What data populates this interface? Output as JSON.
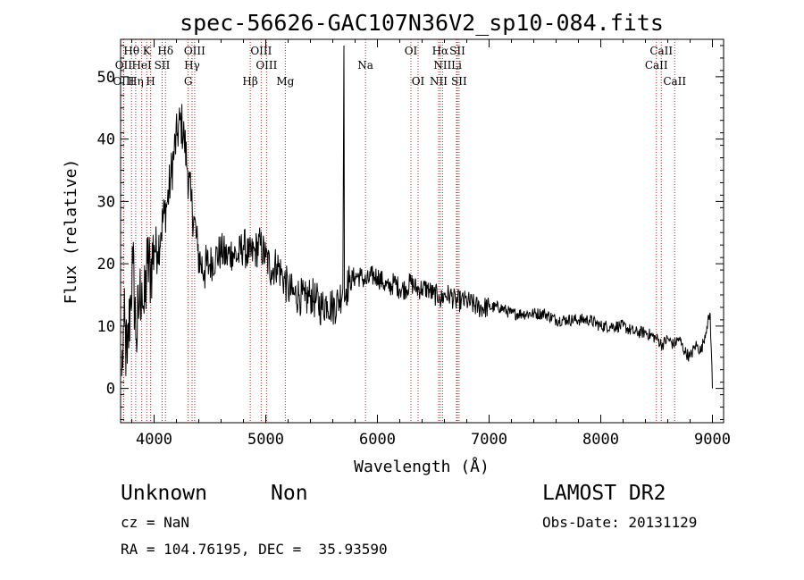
{
  "chart_data": {
    "type": "line",
    "title": "spec-56626-GAC107N36V2_sp10-084.fits",
    "xlabel": "Wavelength (Å)",
    "ylabel": "Flux (relative)",
    "xlim": [
      3700,
      9100
    ],
    "ylim": [
      -5.5,
      56
    ],
    "xticks": [
      4000,
      5000,
      6000,
      7000,
      8000,
      9000
    ],
    "yticks": [
      0,
      10,
      20,
      30,
      40,
      50
    ],
    "grid": false,
    "line_color": "#000000",
    "marker_color": "#b22222",
    "series": [
      {
        "x": [
          3710,
          3730,
          3760,
          3790,
          3810,
          3840,
          3870,
          3890,
          3910,
          3940,
          3970,
          4000,
          4030,
          4060,
          4090,
          4120,
          4150,
          4180,
          4210,
          4240,
          4270,
          4300,
          4330,
          4360,
          4390,
          4420,
          4450,
          4500,
          4550,
          4600,
          4650,
          4700,
          4750,
          4800,
          4850,
          4900,
          4950,
          5000,
          5050,
          5100,
          5150,
          5200,
          5250,
          5300,
          5350,
          5400,
          5450,
          5500,
          5550,
          5600,
          5650,
          5690,
          5700,
          5705,
          5720,
          5750,
          5800,
          5850,
          5900,
          5950,
          6000,
          6050,
          6100,
          6150,
          6200,
          6250,
          6300,
          6350,
          6400,
          6450,
          6500,
          6550,
          6560,
          6600,
          6650,
          6700,
          6750,
          6800,
          6900,
          7000,
          7100,
          7200,
          7300,
          7400,
          7500,
          7600,
          7700,
          7800,
          7900,
          8000,
          8100,
          8200,
          8300,
          8400,
          8500,
          8550,
          8600,
          8650,
          8700,
          8750,
          8800,
          8850,
          8900,
          8950,
          8980,
          9000
        ],
        "y": [
          2,
          10,
          4,
          15,
          20,
          8,
          14,
          17,
          12,
          20,
          19,
          23,
          22,
          25,
          28,
          30,
          34,
          38,
          41,
          43,
          40,
          35,
          30,
          27,
          22,
          20,
          19,
          20,
          21,
          22,
          21,
          22,
          21,
          23,
          21,
          22,
          23,
          21,
          19,
          20,
          18,
          16,
          15,
          15,
          14,
          15,
          14,
          13,
          14,
          13,
          14,
          16,
          55,
          14,
          16,
          17,
          18,
          18,
          17,
          18,
          18,
          17,
          16,
          17,
          16,
          16,
          17,
          16,
          16,
          16,
          15,
          15,
          14,
          15,
          15,
          14,
          14,
          14,
          13,
          13,
          13,
          12,
          12,
          12,
          12,
          11,
          11,
          11,
          11,
          10,
          10,
          10,
          9,
          9,
          8,
          7,
          8,
          7,
          8,
          6,
          5,
          7,
          6,
          10,
          12,
          0
        ]
      }
    ],
    "lines": [
      {
        "name": "Hθ",
        "x": 3798,
        "row": 0
      },
      {
        "name": "K",
        "x": 3934,
        "row": 0
      },
      {
        "name": "Hδ",
        "x": 4102,
        "row": 0
      },
      {
        "name": "OIII",
        "x": 4363,
        "row": 0
      },
      {
        "name": "OIII",
        "x": 4959,
        "row": 0
      },
      {
        "name": "OI",
        "x": 6300,
        "row": 0
      },
      {
        "name": "Hα",
        "x": 6563,
        "row": 0
      },
      {
        "name": "SII",
        "x": 6716,
        "row": 0
      },
      {
        "name": "CaII",
        "x": 8542,
        "row": 0
      },
      {
        "name": "OII",
        "x": 3727,
        "row": 1
      },
      {
        "name": "HeI",
        "x": 3889,
        "row": 1
      },
      {
        "name": "SII",
        "x": 4072,
        "row": 1
      },
      {
        "name": "Hγ",
        "x": 4340,
        "row": 1
      },
      {
        "name": "OIII",
        "x": 5007,
        "row": 1
      },
      {
        "name": "Na",
        "x": 5893,
        "row": 1
      },
      {
        "name": "NII",
        "x": 6583,
        "row": 1
      },
      {
        "name": "Li",
        "x": 6708,
        "row": 1
      },
      {
        "name": "CaII",
        "x": 8498,
        "row": 1
      },
      {
        "name": "OIII",
        "x": 3727,
        "row": 2
      },
      {
        "name": "Hη",
        "x": 3835,
        "row": 2
      },
      {
        "name": "H",
        "x": 3969,
        "row": 2
      },
      {
        "name": "G",
        "x": 4305,
        "row": 2
      },
      {
        "name": "Hβ",
        "x": 4861,
        "row": 2
      },
      {
        "name": "Mg",
        "x": 5175,
        "row": 2
      },
      {
        "name": "OI",
        "x": 6364,
        "row": 2
      },
      {
        "name": "NII",
        "x": 6548,
        "row": 2
      },
      {
        "name": "SII",
        "x": 6731,
        "row": 2
      },
      {
        "name": "CaII",
        "x": 8662,
        "row": 2
      }
    ]
  },
  "info": {
    "object_class": "Unknown",
    "subclass": "Non",
    "survey": "LAMOST DR2",
    "cz": "cz = NaN",
    "obs_date": "Obs-Date: 20131129",
    "coords": "RA = 104.76195, DEC =  35.93590"
  }
}
